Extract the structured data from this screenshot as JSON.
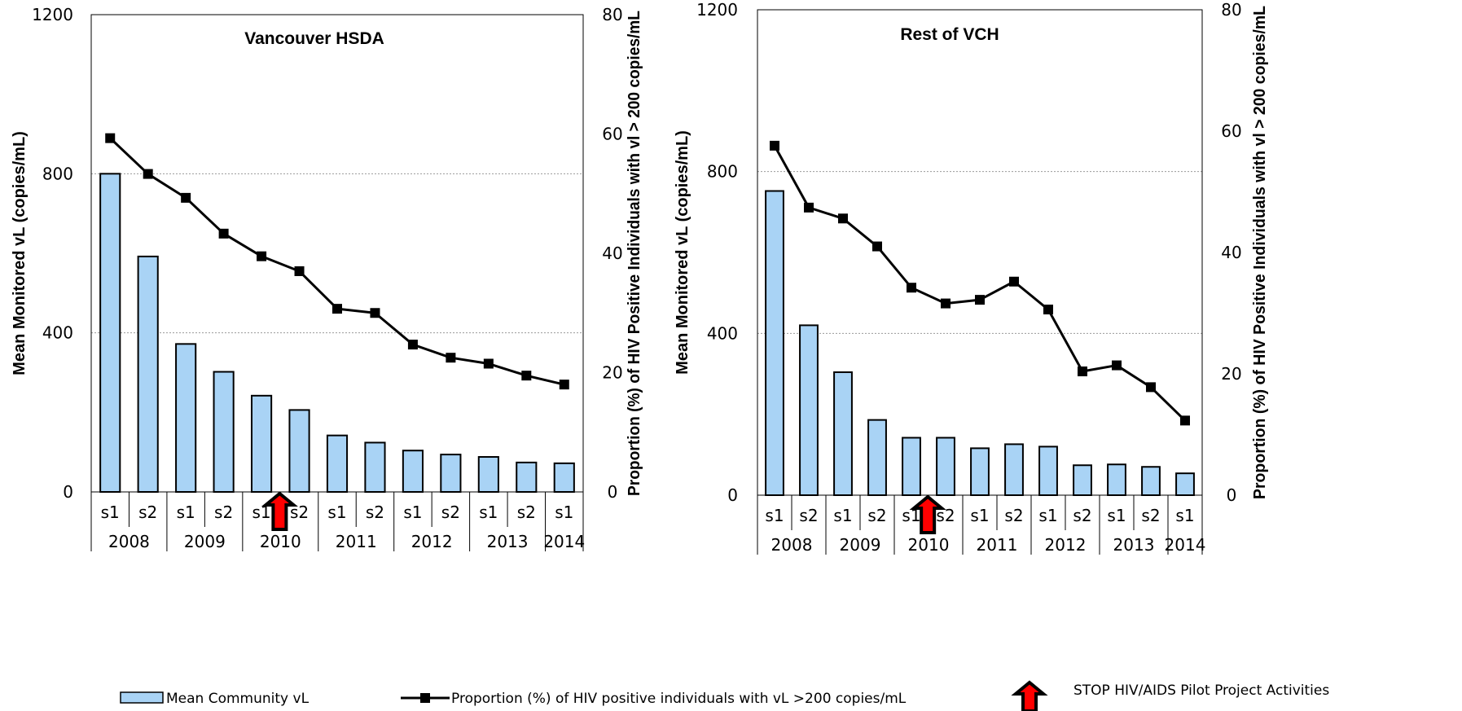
{
  "chart_data": [
    {
      "type": "bar+line",
      "title": "Vancouver HSDA",
      "ylabel": "Mean Monitored vL (copies/mL)",
      "y2label": "Proportion (%) of HIV Positive Individuals with vl > 200 copies/mL",
      "ylim": [
        0,
        1200
      ],
      "y2lim": [
        0,
        80
      ],
      "yticks": [
        "0",
        "400",
        "800",
        "1200"
      ],
      "y2ticks": [
        "0",
        "20",
        "40",
        "60",
        "80"
      ],
      "grid": true,
      "categories": [
        "s1",
        "s2",
        "s1",
        "s2",
        "s1",
        "s2",
        "s1",
        "s2",
        "s1",
        "s2",
        "s1",
        "s2",
        "s1"
      ],
      "year_groups": [
        {
          "label": "2008",
          "span": 2
        },
        {
          "label": "2009",
          "span": 2
        },
        {
          "label": "2010",
          "span": 2
        },
        {
          "label": "2011",
          "span": 2
        },
        {
          "label": "2012",
          "span": 2
        },
        {
          "label": "2013",
          "span": 2
        },
        {
          "label": "2014",
          "span": 1
        }
      ],
      "series": [
        {
          "name": "Mean Community vL",
          "kind": "bar",
          "axis": "left",
          "values": [
            800,
            592,
            372,
            302,
            242,
            206,
            142,
            124,
            104,
            94,
            88,
            74,
            72
          ]
        },
        {
          "name": "Proportion (%) of HIV positive individuals with vL >200 copies/mL",
          "kind": "line",
          "axis": "right",
          "values": [
            59.3,
            53.3,
            49.3,
            43.3,
            39.5,
            37.0,
            30.7,
            30.0,
            24.7,
            22.5,
            21.5,
            19.5,
            18.0
          ]
        }
      ],
      "marker_index": 4
    },
    {
      "type": "bar+line",
      "title": "Rest of VCH",
      "ylabel": "Mean Monitored vL (copies/mL)",
      "y2label": "Proportion (%) of HIV Positive Individuals with vl > 200 copies/mL",
      "ylim": [
        0,
        1200
      ],
      "y2lim": [
        0,
        80
      ],
      "yticks": [
        "0",
        "400",
        "800",
        "1200"
      ],
      "y2ticks": [
        "0",
        "20",
        "40",
        "60",
        "80"
      ],
      "grid": true,
      "categories": [
        "s1",
        "s2",
        "s1",
        "s2",
        "s1",
        "s2",
        "s1",
        "s2",
        "s1",
        "s2",
        "s1",
        "s2",
        "s1"
      ],
      "year_groups": [
        {
          "label": "2008",
          "span": 2
        },
        {
          "label": "2009",
          "span": 2
        },
        {
          "label": "2010",
          "span": 2
        },
        {
          "label": "2011",
          "span": 2
        },
        {
          "label": "2012",
          "span": 2
        },
        {
          "label": "2013",
          "span": 2
        },
        {
          "label": "2014",
          "span": 1
        }
      ],
      "series": [
        {
          "name": "Mean Community vL",
          "kind": "bar",
          "axis": "left",
          "values": [
            752,
            420,
            304,
            186,
            142,
            142,
            116,
            126,
            120,
            74,
            76,
            70,
            54
          ]
        },
        {
          "name": "Proportion (%) of HIV positive individuals with vL >200 copies/mL",
          "kind": "line",
          "axis": "right",
          "values": [
            57.6,
            47.4,
            45.6,
            41.0,
            34.2,
            31.6,
            32.2,
            35.2,
            30.6,
            20.4,
            21.4,
            17.8,
            12.3
          ]
        }
      ],
      "marker_index": 4
    }
  ],
  "legend": {
    "bar_label": "Mean Community vL",
    "line_label": "Proportion (%) of HIV positive individuals with vL >200 copies/mL",
    "arrow_label": "STOP HIV/AIDS Pilot Project Activities"
  },
  "colors": {
    "bar_fill": "#a9d3f5",
    "bar_stroke": "#000000",
    "line": "#000000",
    "arrow_fill": "#ff0000",
    "arrow_stroke": "#000000",
    "grid": "#999999"
  }
}
